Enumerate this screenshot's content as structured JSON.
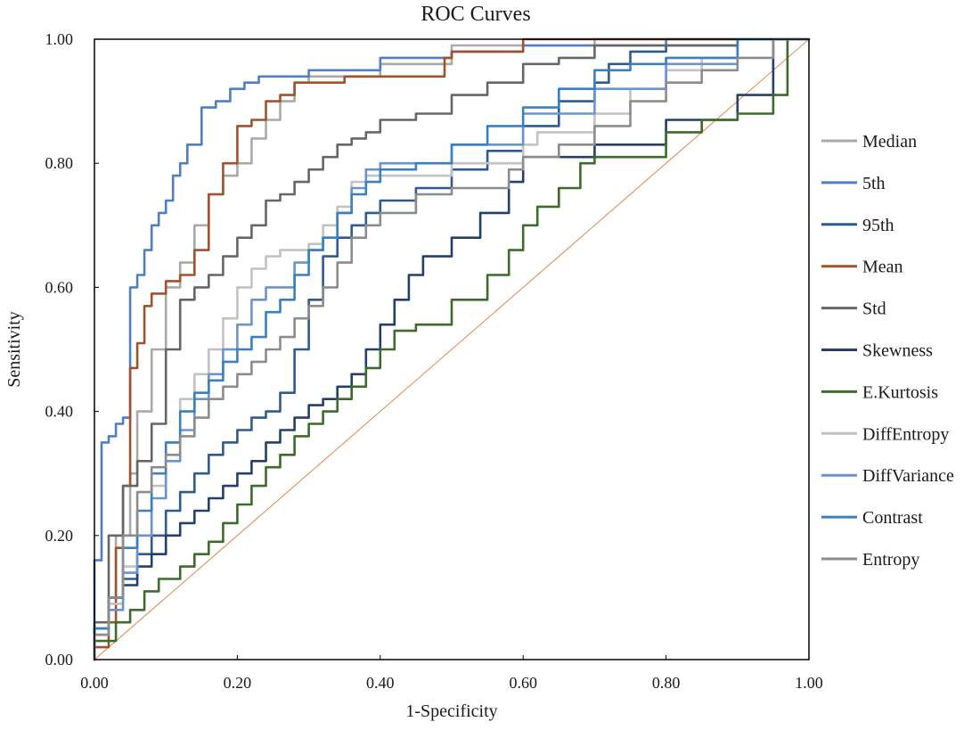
{
  "chart_data": {
    "type": "line",
    "title": "ROC Curves",
    "xlabel": "1-Specificity",
    "ylabel": "Sensitivity",
    "xlim": [
      0,
      1
    ],
    "ylim": [
      0,
      1
    ],
    "xticks": [
      "0.00",
      "0.20",
      "0.40",
      "0.60",
      "0.80",
      "1.00"
    ],
    "yticks": [
      "0.00",
      "0.20",
      "0.40",
      "0.60",
      "0.80",
      "1.00"
    ],
    "grid": false,
    "legend_position": "right",
    "reference_line": {
      "name": "Reference",
      "color": "#e0894a",
      "x": [
        0,
        1
      ],
      "y": [
        0,
        1
      ]
    },
    "series": [
      {
        "name": "Median",
        "color": "#a9a9a9",
        "x": [
          0,
          0.02,
          0.03,
          0.05,
          0.06,
          0.08,
          0.1,
          0.12,
          0.14,
          0.16,
          0.18,
          0.2,
          0.22,
          0.24,
          0.26,
          0.28,
          0.3,
          0.32,
          0.34,
          0.4,
          0.5,
          0.53,
          0.6,
          0.7,
          0.8,
          0.9,
          1.0
        ],
        "y": [
          0,
          0.05,
          0.1,
          0.2,
          0.3,
          0.4,
          0.5,
          0.6,
          0.64,
          0.7,
          0.75,
          0.78,
          0.8,
          0.84,
          0.87,
          0.9,
          0.93,
          0.94,
          0.94,
          0.94,
          0.96,
          0.99,
          0.99,
          0.99,
          1.0,
          1.0,
          1.0
        ]
      },
      {
        "name": "5th",
        "color": "#4f7fc2",
        "x": [
          0,
          0.01,
          0.02,
          0.03,
          0.04,
          0.05,
          0.06,
          0.07,
          0.08,
          0.09,
          0.1,
          0.11,
          0.12,
          0.13,
          0.15,
          0.17,
          0.19,
          0.21,
          0.23,
          0.25,
          0.3,
          0.4,
          0.5,
          0.6,
          0.7,
          0.8,
          0.9,
          1.0
        ],
        "y": [
          0,
          0.16,
          0.35,
          0.36,
          0.38,
          0.39,
          0.6,
          0.62,
          0.66,
          0.7,
          0.72,
          0.74,
          0.78,
          0.8,
          0.83,
          0.89,
          0.9,
          0.92,
          0.93,
          0.94,
          0.94,
          0.95,
          0.97,
          0.98,
          0.99,
          0.99,
          1.0,
          1.0
        ]
      },
      {
        "name": "95th",
        "color": "#2e5b8f",
        "x": [
          0,
          0.02,
          0.04,
          0.06,
          0.08,
          0.1,
          0.12,
          0.14,
          0.16,
          0.18,
          0.2,
          0.22,
          0.24,
          0.26,
          0.28,
          0.3,
          0.32,
          0.34,
          0.36,
          0.38,
          0.4,
          0.45,
          0.5,
          0.55,
          0.6,
          0.65,
          0.7,
          0.72,
          0.75,
          0.8,
          0.9,
          1.0
        ],
        "y": [
          0,
          0.05,
          0.1,
          0.13,
          0.17,
          0.2,
          0.24,
          0.27,
          0.3,
          0.33,
          0.35,
          0.37,
          0.39,
          0.4,
          0.43,
          0.5,
          0.58,
          0.65,
          0.68,
          0.7,
          0.72,
          0.74,
          0.76,
          0.79,
          0.82,
          0.86,
          0.9,
          0.93,
          0.96,
          0.98,
          0.99,
          1.0
        ]
      },
      {
        "name": "Mean",
        "color": "#a0522d",
        "x": [
          0,
          0.02,
          0.03,
          0.04,
          0.05,
          0.06,
          0.07,
          0.08,
          0.1,
          0.12,
          0.14,
          0.16,
          0.18,
          0.2,
          0.22,
          0.24,
          0.26,
          0.28,
          0.3,
          0.35,
          0.4,
          0.49,
          0.5,
          0.6,
          0.7,
          0.8,
          1.0
        ],
        "y": [
          0,
          0.02,
          0.06,
          0.18,
          0.28,
          0.47,
          0.51,
          0.57,
          0.59,
          0.61,
          0.62,
          0.66,
          0.75,
          0.8,
          0.86,
          0.87,
          0.9,
          0.91,
          0.93,
          0.93,
          0.94,
          0.94,
          0.97,
          0.98,
          1.0,
          1.0,
          1.0
        ]
      },
      {
        "name": "Std",
        "color": "#666666",
        "x": [
          0,
          0.02,
          0.04,
          0.06,
          0.08,
          0.1,
          0.12,
          0.14,
          0.16,
          0.18,
          0.2,
          0.22,
          0.24,
          0.26,
          0.28,
          0.3,
          0.32,
          0.34,
          0.36,
          0.38,
          0.4,
          0.45,
          0.5,
          0.55,
          0.6,
          0.65,
          0.7,
          0.8,
          0.9,
          1.0
        ],
        "y": [
          0,
          0.06,
          0.2,
          0.28,
          0.32,
          0.38,
          0.5,
          0.58,
          0.6,
          0.62,
          0.65,
          0.68,
          0.7,
          0.74,
          0.75,
          0.77,
          0.79,
          0.81,
          0.83,
          0.84,
          0.85,
          0.87,
          0.88,
          0.91,
          0.93,
          0.96,
          0.97,
          0.99,
          0.99,
          1.0
        ]
      },
      {
        "name": "Skewness",
        "color": "#243f6b",
        "x": [
          0,
          0.02,
          0.04,
          0.06,
          0.08,
          0.1,
          0.12,
          0.14,
          0.16,
          0.18,
          0.2,
          0.22,
          0.24,
          0.26,
          0.28,
          0.3,
          0.32,
          0.34,
          0.36,
          0.38,
          0.4,
          0.42,
          0.44,
          0.46,
          0.5,
          0.54,
          0.58,
          0.6,
          0.62,
          0.7,
          0.8,
          0.9,
          0.95,
          1.0
        ],
        "y": [
          0,
          0.05,
          0.1,
          0.12,
          0.15,
          0.17,
          0.2,
          0.22,
          0.24,
          0.26,
          0.28,
          0.3,
          0.32,
          0.35,
          0.37,
          0.39,
          0.41,
          0.42,
          0.44,
          0.46,
          0.5,
          0.54,
          0.58,
          0.62,
          0.65,
          0.68,
          0.72,
          0.77,
          0.81,
          0.81,
          0.83,
          0.87,
          0.91,
          1.0
        ]
      },
      {
        "name": "E.Kurtosis",
        "color": "#3d6b2a",
        "x": [
          0,
          0.03,
          0.05,
          0.07,
          0.09,
          0.12,
          0.14,
          0.16,
          0.18,
          0.2,
          0.22,
          0.24,
          0.26,
          0.28,
          0.3,
          0.32,
          0.34,
          0.36,
          0.38,
          0.4,
          0.42,
          0.45,
          0.5,
          0.55,
          0.58,
          0.6,
          0.62,
          0.65,
          0.68,
          0.7,
          0.75,
          0.8,
          0.85,
          0.9,
          0.95,
          0.97,
          1.0
        ],
        "y": [
          0,
          0.03,
          0.06,
          0.08,
          0.11,
          0.13,
          0.15,
          0.17,
          0.19,
          0.22,
          0.25,
          0.28,
          0.31,
          0.33,
          0.36,
          0.38,
          0.4,
          0.42,
          0.44,
          0.47,
          0.5,
          0.53,
          0.54,
          0.58,
          0.62,
          0.66,
          0.7,
          0.73,
          0.76,
          0.8,
          0.81,
          0.81,
          0.85,
          0.87,
          0.88,
          0.91,
          1.0
        ]
      },
      {
        "name": "DiffEntropy",
        "color": "#c2c2c2",
        "x": [
          0,
          0.02,
          0.04,
          0.06,
          0.08,
          0.1,
          0.12,
          0.14,
          0.16,
          0.18,
          0.2,
          0.22,
          0.24,
          0.26,
          0.28,
          0.3,
          0.32,
          0.34,
          0.36,
          0.38,
          0.4,
          0.5,
          0.6,
          0.62,
          0.7,
          0.75,
          0.8,
          0.85,
          0.9,
          1.0
        ],
        "y": [
          0,
          0.04,
          0.09,
          0.15,
          0.2,
          0.28,
          0.35,
          0.42,
          0.46,
          0.5,
          0.55,
          0.6,
          0.63,
          0.65,
          0.66,
          0.66,
          0.67,
          0.7,
          0.73,
          0.77,
          0.78,
          0.78,
          0.8,
          0.83,
          0.85,
          0.88,
          0.92,
          0.95,
          0.97,
          1.0
        ]
      },
      {
        "name": "DiffVariance",
        "color": "#6b93cd",
        "x": [
          0,
          0.02,
          0.04,
          0.06,
          0.08,
          0.1,
          0.12,
          0.14,
          0.16,
          0.18,
          0.2,
          0.22,
          0.24,
          0.26,
          0.28,
          0.3,
          0.32,
          0.34,
          0.36,
          0.38,
          0.4,
          0.45,
          0.5,
          0.6,
          0.7,
          0.8,
          0.9,
          1.0
        ],
        "y": [
          0,
          0.04,
          0.08,
          0.14,
          0.2,
          0.26,
          0.32,
          0.37,
          0.42,
          0.46,
          0.5,
          0.54,
          0.58,
          0.6,
          0.6,
          0.64,
          0.66,
          0.68,
          0.72,
          0.76,
          0.79,
          0.8,
          0.8,
          0.83,
          0.88,
          0.92,
          0.96,
          1.0
        ]
      },
      {
        "name": "Contrast",
        "color": "#3a80bd",
        "x": [
          0,
          0.02,
          0.04,
          0.06,
          0.08,
          0.1,
          0.12,
          0.14,
          0.16,
          0.18,
          0.2,
          0.22,
          0.24,
          0.26,
          0.28,
          0.3,
          0.32,
          0.34,
          0.36,
          0.38,
          0.4,
          0.45,
          0.5,
          0.55,
          0.6,
          0.65,
          0.7,
          0.75,
          0.8,
          0.9,
          1.0
        ],
        "y": [
          0,
          0.05,
          0.1,
          0.18,
          0.24,
          0.3,
          0.35,
          0.4,
          0.43,
          0.45,
          0.48,
          0.5,
          0.52,
          0.56,
          0.58,
          0.62,
          0.66,
          0.68,
          0.72,
          0.75,
          0.77,
          0.79,
          0.8,
          0.83,
          0.86,
          0.89,
          0.92,
          0.95,
          0.96,
          0.97,
          1.0
        ]
      },
      {
        "name": "Entropy",
        "color": "#8c8c8c",
        "x": [
          0,
          0.02,
          0.04,
          0.06,
          0.08,
          0.1,
          0.12,
          0.14,
          0.16,
          0.18,
          0.2,
          0.22,
          0.24,
          0.26,
          0.28,
          0.3,
          0.32,
          0.34,
          0.36,
          0.38,
          0.4,
          0.45,
          0.5,
          0.55,
          0.58,
          0.6,
          0.65,
          0.7,
          0.75,
          0.8,
          0.85,
          0.9,
          0.95,
          1.0
        ],
        "y": [
          0,
          0.04,
          0.1,
          0.2,
          0.27,
          0.31,
          0.33,
          0.36,
          0.39,
          0.42,
          0.44,
          0.46,
          0.48,
          0.5,
          0.52,
          0.55,
          0.57,
          0.6,
          0.64,
          0.68,
          0.7,
          0.72,
          0.75,
          0.76,
          0.76,
          0.79,
          0.81,
          0.83,
          0.86,
          0.9,
          0.93,
          0.95,
          0.97,
          1.0
        ]
      }
    ]
  }
}
